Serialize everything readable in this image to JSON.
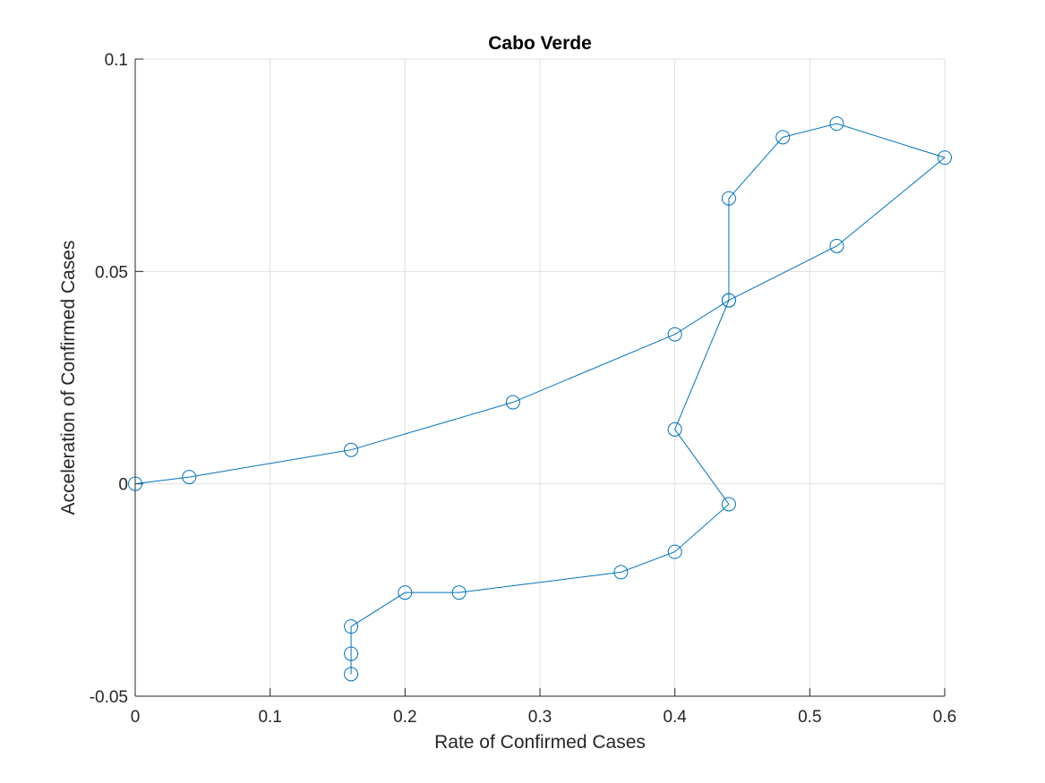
{
  "chart_data": {
    "type": "line",
    "title": "Cabo Verde",
    "xlabel": "Rate of Confirmed Cases",
    "ylabel": "Acceleration of Confirmed Cases",
    "xlim": [
      0,
      0.6
    ],
    "ylim": [
      -0.05,
      0.1
    ],
    "xticks": [
      0,
      0.1,
      0.2,
      0.3,
      0.4,
      0.5,
      0.6
    ],
    "xtick_labels": [
      "0",
      "0.1",
      "0.2",
      "0.3",
      "0.4",
      "0.5",
      "0.6"
    ],
    "yticks": [
      -0.05,
      0,
      0.05,
      0.1
    ],
    "ytick_labels": [
      "-0.05",
      "0",
      "0.05",
      "0.1"
    ],
    "grid": true,
    "marker": "circle",
    "line_color": "#0072bd",
    "series": [
      {
        "x": [
          0,
          0.04,
          0.16,
          0.28,
          0.4,
          0.44,
          0.52,
          0.6,
          0.52,
          0.48,
          0.44,
          0.44,
          0.4,
          0.44,
          0.4,
          0.36,
          0.24,
          0.2,
          0.16,
          0.16,
          0.16
        ],
        "y": [
          0,
          0.0016,
          0.008,
          0.0192,
          0.0352,
          0.0432,
          0.056,
          0.0768,
          0.0848,
          0.0816,
          0.0672,
          0.0432,
          0.0128,
          -0.0048,
          -0.016,
          -0.0208,
          -0.0256,
          -0.0256,
          -0.0336,
          -0.04,
          -0.0448
        ]
      }
    ]
  }
}
